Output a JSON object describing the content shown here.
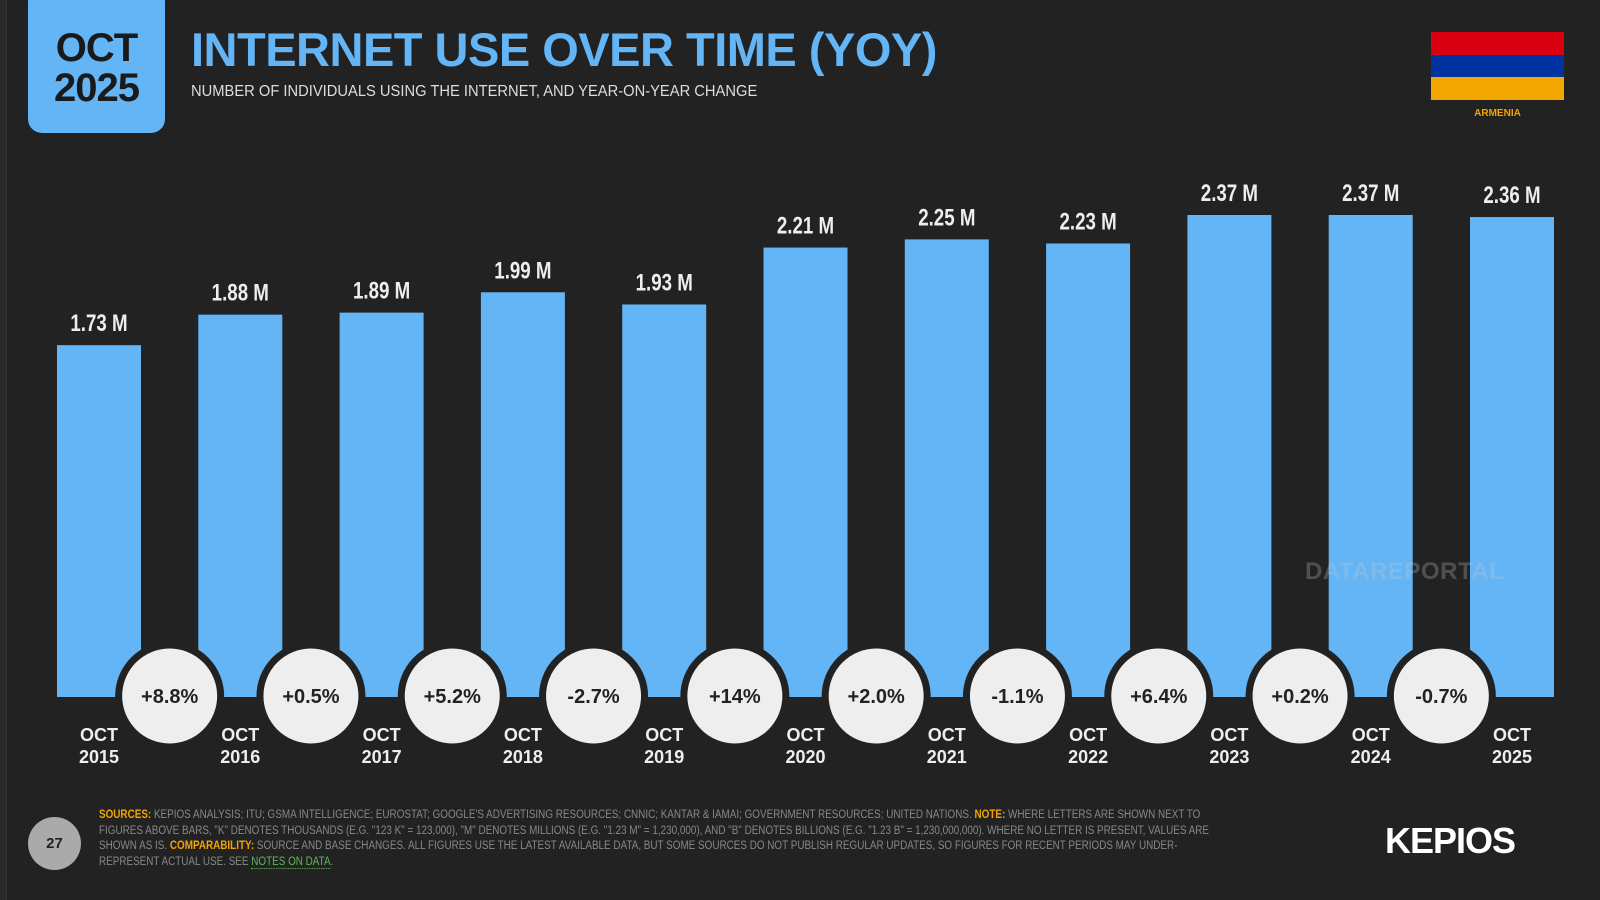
{
  "badge": {
    "month": "OCT",
    "year": "2025"
  },
  "header": {
    "title": "INTERNET USE OVER TIME (YOY)",
    "subtitle": "NUMBER OF INDIVIDUALS USING THE INTERNET, AND YEAR-ON-YEAR CHANGE"
  },
  "country": {
    "name": "ARMENIA",
    "flag_colors": [
      "#d90012",
      "#0033a0",
      "#f2a800"
    ]
  },
  "colors": {
    "bar": "#64b5f6",
    "background": "#222222",
    "accent": "#f0a500"
  },
  "chart_data": {
    "type": "bar",
    "categories": [
      [
        "OCT",
        "2015"
      ],
      [
        "OCT",
        "2016"
      ],
      [
        "OCT",
        "2017"
      ],
      [
        "OCT",
        "2018"
      ],
      [
        "OCT",
        "2019"
      ],
      [
        "OCT",
        "2020"
      ],
      [
        "OCT",
        "2021"
      ],
      [
        "OCT",
        "2022"
      ],
      [
        "OCT",
        "2023"
      ],
      [
        "OCT",
        "2024"
      ],
      [
        "OCT",
        "2025"
      ]
    ],
    "values": [
      1.73,
      1.88,
      1.89,
      1.99,
      1.93,
      2.21,
      2.25,
      2.23,
      2.37,
      2.37,
      2.36
    ],
    "value_labels": [
      "1.73 M",
      "1.88 M",
      "1.89 M",
      "1.99 M",
      "1.93 M",
      "2.21 M",
      "2.25 M",
      "2.23 M",
      "2.37 M",
      "2.37 M",
      "2.36 M"
    ],
    "unit": "millions",
    "yoy_change": [
      "+8.8%",
      "+0.5%",
      "+5.2%",
      "-2.7%",
      "+14%",
      "+2.0%",
      "-1.1%",
      "+6.4%",
      "+0.2%",
      "-0.7%"
    ],
    "ylim": [
      0,
      2.37
    ],
    "grid": false
  },
  "watermark": "DATAREPORTAL",
  "footer": {
    "page": "27",
    "sources_label": "SOURCES:",
    "sources": " KEPIOS ANALYSIS; ITU; GSMA INTELLIGENCE; EUROSTAT; GOOGLE'S ADVERTISING RESOURCES; CNNIC; KANTAR & IAMAI; GOVERNMENT RESOURCES; UNITED NATIONS. ",
    "note_label": "NOTE:",
    "note": " WHERE LETTERS ARE SHOWN NEXT TO FIGURES ABOVE BARS, \"K\" DENOTES THOUSANDS (E.G. \"123 K\" = 123,000), \"M\" DENOTES MILLIONS (E.G. \"1.23 M\" = 1,230,000), AND \"B\" DENOTES BILLIONS (E.G. \"1.23 B\" = 1,230,000,000). WHERE NO LETTER IS PRESENT, VALUES ARE SHOWN AS IS. ",
    "comparability_label": "COMPARABILITY:",
    "comparability": " SOURCE AND BASE CHANGES. ALL FIGURES USE THE LATEST AVAILABLE DATA, BUT SOME SOURCES DO NOT PUBLISH REGULAR UPDATES, SO FIGURES FOR RECENT PERIODS MAY UNDER-REPRESENT ACTUAL USE. SEE ",
    "link": "NOTES ON DATA",
    "link_end": "."
  },
  "brand": "KEPIOS"
}
